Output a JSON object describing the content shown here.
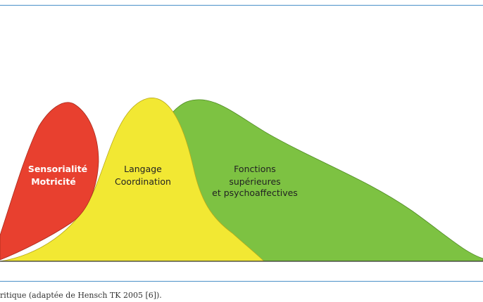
{
  "figure": {
    "frame_color": "#4a90c8",
    "baseline_color": "#333333",
    "curves": [
      {
        "key": "green",
        "color": "#7dc242",
        "stroke": "#4f8a24",
        "labels": [
          "Fonctions",
          "supérieures",
          "et psychoaffectives"
        ]
      },
      {
        "key": "yellow",
        "color": "#f2e833",
        "stroke": "#b8a91a",
        "labels": [
          "Langage",
          "Coordination"
        ]
      },
      {
        "key": "red",
        "color": "#e8402f",
        "stroke": "#a82a1c",
        "labels": [
          "Sensorialité",
          "Motricité"
        ]
      }
    ]
  },
  "caption": {
    "text": "ritique (adaptée de Hensch TK 2005 [6])."
  }
}
